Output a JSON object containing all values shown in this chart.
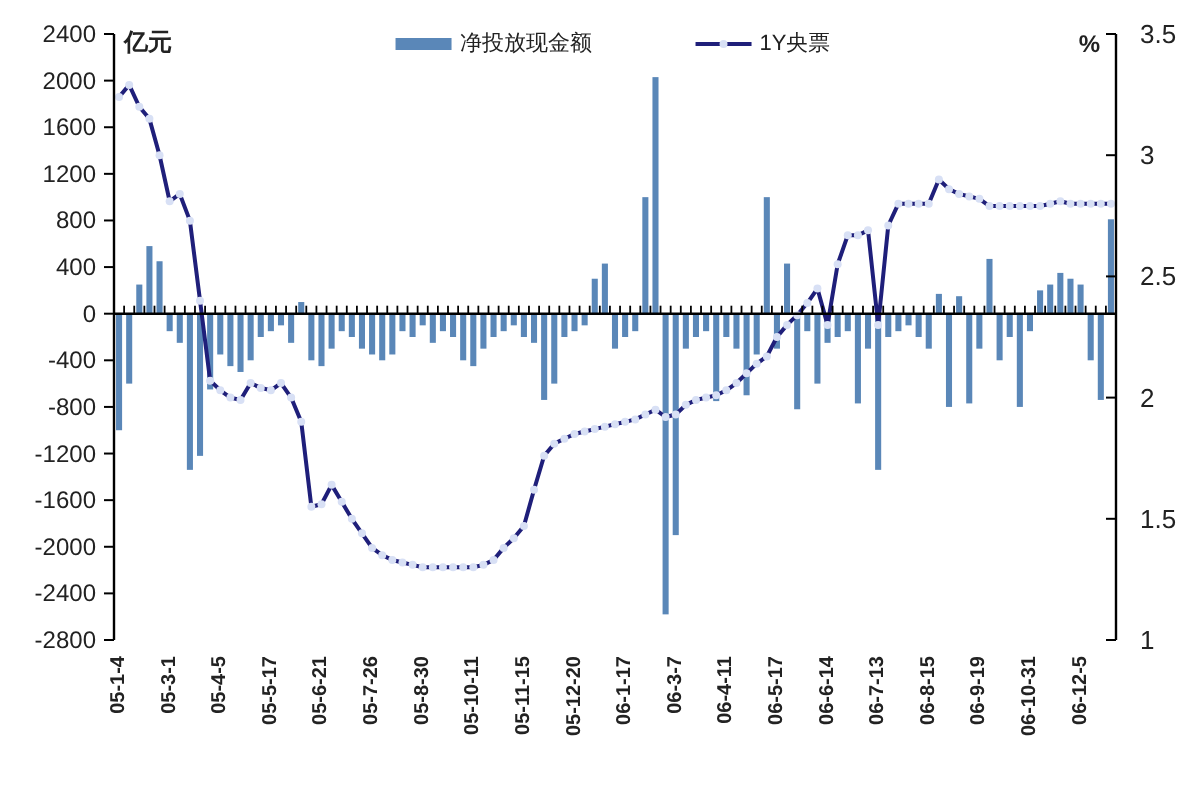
{
  "chart_data": {
    "type": "bar",
    "categories": [
      "05-1-4",
      null,
      null,
      null,
      null,
      "05-3-1",
      null,
      null,
      null,
      null,
      "05-4-5",
      null,
      null,
      null,
      null,
      "05-5-17",
      null,
      null,
      null,
      null,
      "05-6-21",
      null,
      null,
      null,
      null,
      "05-7-26",
      null,
      null,
      null,
      null,
      "05-8-30",
      null,
      null,
      null,
      null,
      "05-10-11",
      null,
      null,
      null,
      null,
      "05-11-15",
      null,
      null,
      null,
      null,
      "05-12-20",
      null,
      null,
      null,
      null,
      "06-1-17",
      null,
      null,
      null,
      null,
      "06-3-7",
      null,
      null,
      null,
      null,
      "06-4-11",
      null,
      null,
      null,
      null,
      "06-5-17",
      null,
      null,
      null,
      null,
      "06-6-14",
      null,
      null,
      null,
      null,
      "06-7-13",
      null,
      null,
      null,
      null,
      "06-8-15",
      null,
      null,
      null,
      null,
      "06-9-19",
      null,
      null,
      null,
      null,
      "06-10-31",
      null,
      null,
      null,
      null,
      "06-12-5",
      null,
      null,
      null
    ],
    "series": [
      {
        "name": "净投放现金额",
        "color": "#5a87b8",
        "values": [
          -1000,
          -600,
          250,
          580,
          450,
          -150,
          -250,
          -1340,
          -1220,
          -650,
          -350,
          -450,
          -500,
          -400,
          -200,
          -150,
          -100,
          -250,
          100,
          -400,
          -450,
          -300,
          -150,
          -200,
          -300,
          -350,
          -400,
          -350,
          -150,
          -200,
          -100,
          -250,
          -150,
          -200,
          -400,
          -450,
          -300,
          -200,
          -150,
          -100,
          -200,
          -250,
          -740,
          -600,
          -200,
          -150,
          -100,
          300,
          430,
          -300,
          -200,
          -150,
          1000,
          2030,
          -2580,
          -1900,
          -300,
          -200,
          -150,
          -750,
          -200,
          -300,
          -700,
          -350,
          1000,
          -300,
          430,
          -820,
          -150,
          -600,
          -250,
          -200,
          -150,
          -770,
          -300,
          -1340,
          -200,
          -150,
          -100,
          -200,
          -300,
          170,
          -800,
          150,
          -770,
          -300,
          470,
          -400,
          -200,
          -800,
          -150,
          200,
          250,
          350,
          300,
          250,
          -400,
          -740,
          810
        ]
      },
      {
        "name": "1Y央票",
        "type": "line",
        "axis": "y2",
        "color": "#1f1f7a",
        "marker": "circle",
        "values": [
          3.24,
          3.29,
          3.2,
          3.15,
          3.0,
          2.81,
          2.84,
          2.73,
          2.4,
          2.07,
          2.03,
          2.0,
          1.99,
          2.06,
          2.04,
          2.03,
          2.06,
          2.0,
          1.9,
          1.55,
          1.56,
          1.64,
          1.57,
          1.5,
          1.44,
          1.38,
          1.35,
          1.33,
          1.32,
          1.31,
          1.3,
          1.3,
          1.3,
          1.3,
          1.3,
          1.3,
          1.31,
          1.33,
          1.38,
          1.42,
          1.47,
          1.62,
          1.76,
          1.81,
          1.83,
          1.85,
          1.86,
          1.87,
          1.88,
          1.89,
          1.9,
          1.91,
          1.93,
          1.95,
          1.92,
          1.93,
          1.97,
          1.99,
          2.0,
          2.01,
          2.03,
          2.06,
          2.1,
          2.14,
          2.17,
          2.25,
          2.3,
          2.34,
          2.39,
          2.45,
          2.3,
          2.55,
          2.67,
          2.67,
          2.69,
          2.3,
          2.71,
          2.8,
          2.8,
          2.8,
          2.8,
          2.9,
          2.86,
          2.84,
          2.83,
          2.82,
          2.79,
          2.79,
          2.79,
          2.79,
          2.79,
          2.79,
          2.8,
          2.81,
          2.8,
          2.8,
          2.8,
          2.8,
          2.8
        ]
      }
    ],
    "ylabel": "亿元",
    "y2label": "%",
    "ylim": [
      -2800,
      2400
    ],
    "yticks": [
      -2800,
      -2400,
      -2000,
      -1600,
      -1200,
      -800,
      -400,
      0,
      400,
      800,
      1200,
      1600,
      2000,
      2400
    ],
    "y2lim": [
      1,
      3.5
    ],
    "y2ticks": [
      1,
      1.5,
      2,
      2.5,
      3,
      3.5
    ],
    "legend": "top"
  }
}
